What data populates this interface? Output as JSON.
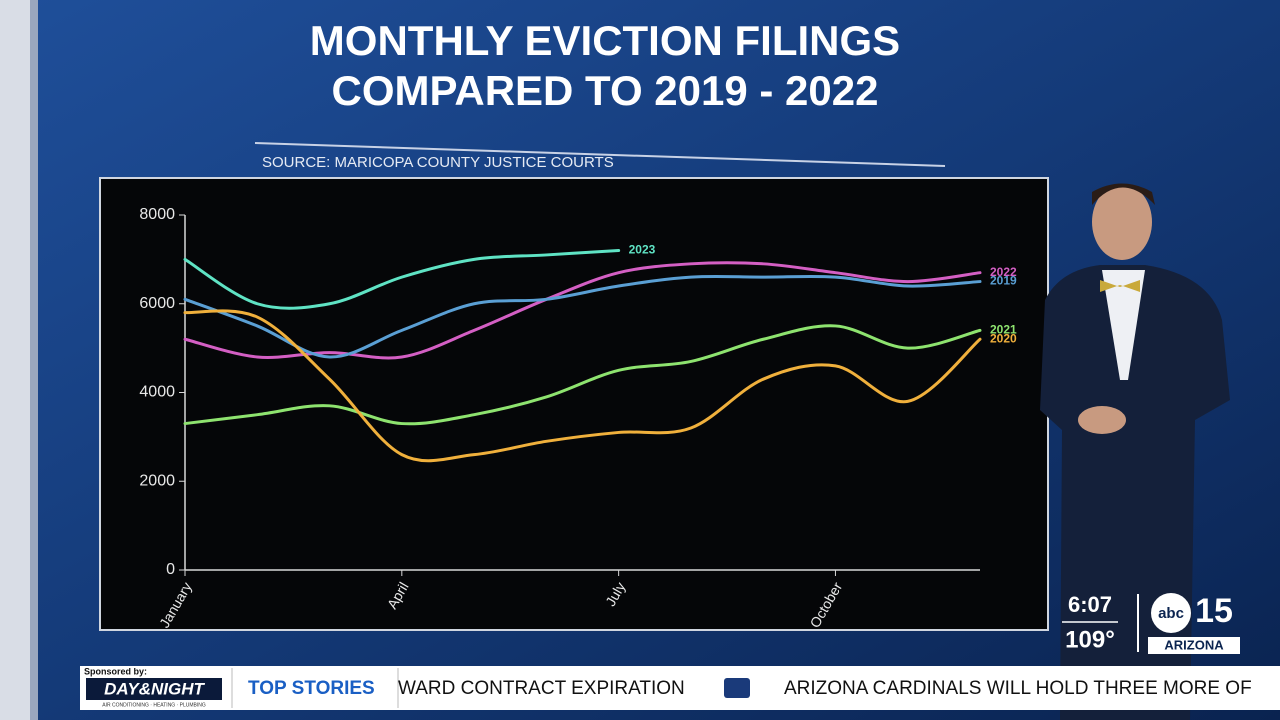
{
  "chart_data": {
    "type": "line",
    "title": "MONTHLY EVICTION FILINGS",
    "subtitle": "COMPARED TO 2019 - 2022",
    "source": "SOURCE: MARICOPA COUNTY JUSTICE COURTS",
    "categories": [
      "January",
      null,
      null,
      "April",
      null,
      null,
      "July",
      null,
      null,
      "October",
      null,
      null
    ],
    "ylim": [
      0,
      8000
    ],
    "yticks": [
      0,
      2000,
      4000,
      6000,
      8000
    ],
    "series": [
      {
        "name": "2023",
        "color": "#5fe3c4",
        "values": [
          7000,
          6000,
          6000,
          6600,
          7000,
          7100,
          7200,
          null,
          null,
          null,
          null,
          null
        ]
      },
      {
        "name": "2022",
        "color": "#d45fc4",
        "values": [
          5200,
          4800,
          4900,
          4800,
          5400,
          6100,
          6700,
          6900,
          6900,
          6700,
          6500,
          6700
        ]
      },
      {
        "name": "2019",
        "color": "#5a9fd4",
        "values": [
          6100,
          5500,
          4800,
          5400,
          6000,
          6100,
          6400,
          6600,
          6600,
          6600,
          6400,
          6500
        ]
      },
      {
        "name": "2021",
        "color": "#8ee36f",
        "values": [
          3300,
          3500,
          3700,
          3300,
          3500,
          3900,
          4500,
          4700,
          5200,
          5500,
          5000,
          5400
        ]
      },
      {
        "name": "2020",
        "color": "#f0b03c",
        "values": [
          5800,
          5700,
          4300,
          2600,
          2600,
          2900,
          3100,
          3200,
          4300,
          4600,
          3800,
          5200
        ]
      }
    ]
  },
  "overlay": {
    "time": "6:07",
    "temperature": "109°",
    "station": "abc",
    "channel": "15",
    "region": "ARIZONA"
  },
  "ticker": {
    "sponsor_label": "Sponsored by:",
    "sponsor": "DAY&NIGHT",
    "sponsor_tagline": "AIR CONDITIONING · HEATING · PLUMBING",
    "section": "TOP STORIES",
    "items": [
      "WARD CONTRACT EXPIRATION",
      "ARIZONA CARDINALS WILL HOLD THREE MORE OF"
    ]
  }
}
